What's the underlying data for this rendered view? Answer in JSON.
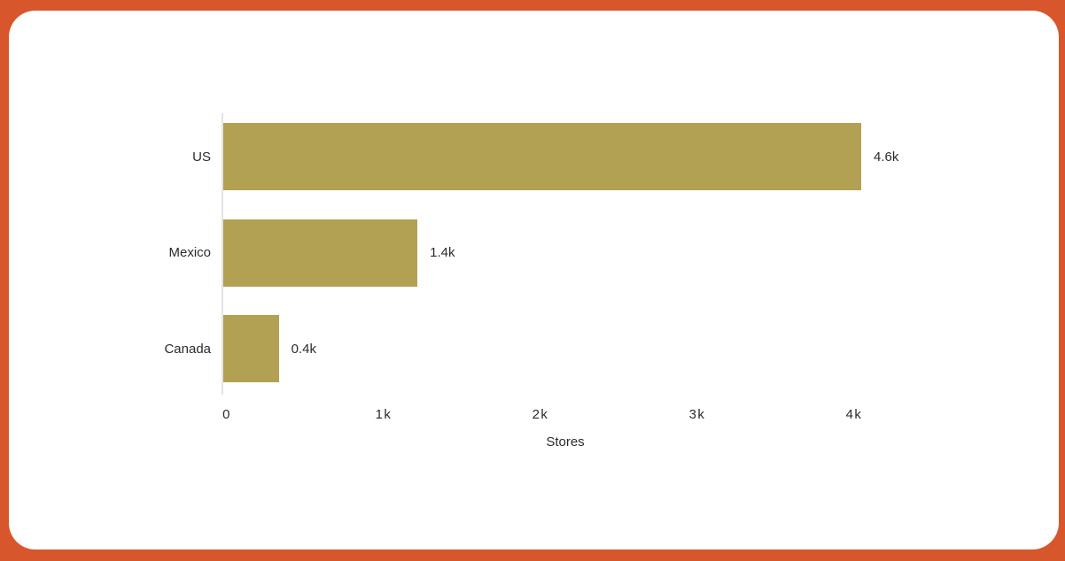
{
  "window": {
    "background_color": "#D8562B",
    "card_color": "#FFFFFF"
  },
  "chart_data": {
    "type": "bar",
    "orientation": "horizontal",
    "title": "",
    "xlabel": "Stores",
    "ylabel": "",
    "categories": [
      "US",
      "Mexico",
      "Canada"
    ],
    "values": [
      4600,
      1400,
      400
    ],
    "value_labels": [
      "4.6k",
      "1.4k",
      "0.4k"
    ],
    "x_ticks": [
      {
        "value": 0,
        "label": "0"
      },
      {
        "value": 1000,
        "label": "1k"
      },
      {
        "value": 2000,
        "label": "2k"
      },
      {
        "value": 3000,
        "label": "3k"
      },
      {
        "value": 4000,
        "label": "4k"
      }
    ],
    "xlim": [
      0,
      4600
    ],
    "grid": false,
    "legend": false,
    "bar_color": "#B2A053",
    "axis_line_color": "#E3E3E3",
    "text_color": "#2B2B2B"
  }
}
